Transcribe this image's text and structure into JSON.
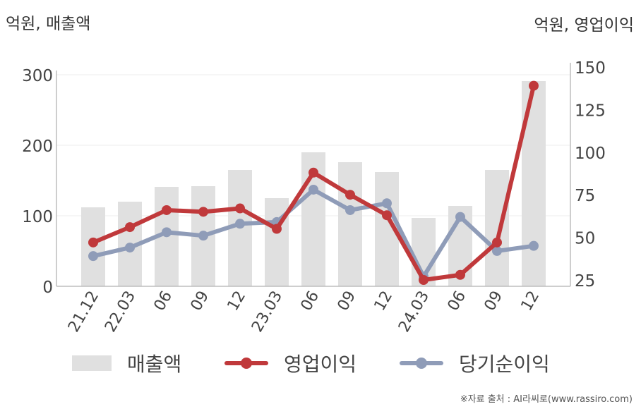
{
  "units": {
    "left": "억원, 매출액",
    "right": "억원, 영업이익"
  },
  "source": "※자료 출처 : AI라씨로(www.rassiro.com)",
  "colors": {
    "bar": "#e0e0e0",
    "operating_profit": "#c0393b",
    "net_income": "#8f9cb8",
    "axis": "#bdbdbd",
    "grid": "#ececec"
  },
  "chart_data": {
    "type": "bar",
    "categories": [
      "21.12",
      "22.03",
      "06",
      "09",
      "12",
      "23.03",
      "06",
      "09",
      "12",
      "24.03",
      "06",
      "09",
      "12"
    ],
    "series": [
      {
        "name": "매출액",
        "type": "bar",
        "axis": "left",
        "values": [
          112,
          120,
          141,
          142,
          165,
          125,
          190,
          176,
          162,
          97,
          114,
          165,
          291
        ]
      },
      {
        "name": "영업이익",
        "type": "line",
        "axis": "right",
        "values": [
          47,
          56,
          66,
          65,
          67,
          55,
          88,
          75,
          63,
          25,
          28,
          47,
          139
        ]
      },
      {
        "name": "당기순이익",
        "type": "line",
        "axis": "right",
        "values": [
          39,
          44,
          53,
          51,
          58,
          59,
          78,
          66,
          70,
          27,
          62,
          42,
          45
        ]
      }
    ],
    "y_left": {
      "ylim": [
        0,
        300
      ],
      "ticks": [
        "0",
        "100",
        "200",
        "300"
      ]
    },
    "y_right": {
      "ylim": [
        25,
        150
      ],
      "ticks": [
        "25",
        "50",
        "75",
        "100",
        "125",
        "150"
      ]
    },
    "grid": true,
    "legend": {
      "position": "bottom",
      "entries": [
        "매출액",
        "영업이익",
        "당기순이익"
      ]
    }
  }
}
